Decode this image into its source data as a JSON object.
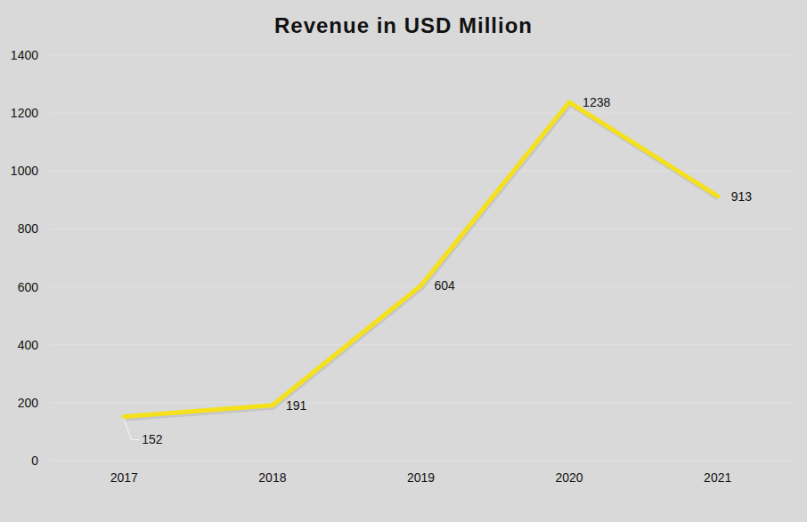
{
  "chart_data": {
    "type": "line",
    "title": "Revenue in USD Million",
    "categories": [
      "2017",
      "2018",
      "2019",
      "2020",
      "2021"
    ],
    "values": [
      152,
      191,
      604,
      1238,
      913
    ],
    "color": "#f5e11b",
    "ylim": [
      0,
      1400
    ],
    "yticks": [
      0,
      200,
      400,
      600,
      800,
      1000,
      1200,
      1400
    ],
    "grid": true,
    "data_labels": true
  }
}
